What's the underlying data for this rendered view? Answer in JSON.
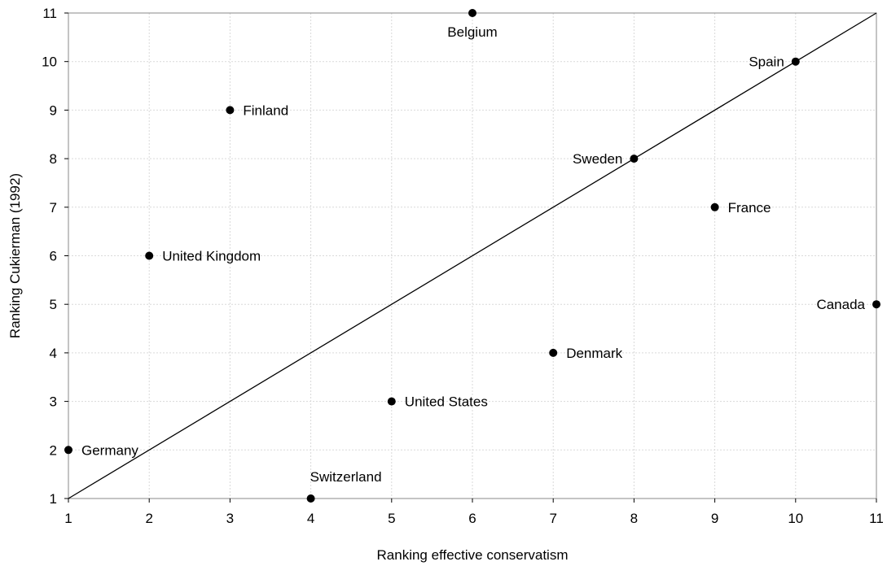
{
  "chart_data": {
    "type": "scatter",
    "xlabel": "Ranking effective conservatism",
    "ylabel": "Ranking Cukierman (1992)",
    "xlim": [
      1,
      11
    ],
    "ylim": [
      1,
      11
    ],
    "xticks": [
      1,
      2,
      3,
      4,
      5,
      6,
      7,
      8,
      9,
      10,
      11
    ],
    "yticks": [
      1,
      2,
      3,
      4,
      5,
      6,
      7,
      8,
      9,
      10,
      11
    ],
    "grid": "vertical and horizontal, light gray dotted",
    "legend": "none",
    "reference_line": {
      "from": [
        1,
        1
      ],
      "to": [
        11,
        11
      ]
    },
    "points": [
      {
        "label": "Germany",
        "x": 1,
        "y": 2,
        "label_side": "right"
      },
      {
        "label": "United Kingdom",
        "x": 2,
        "y": 6,
        "label_side": "right"
      },
      {
        "label": "Finland",
        "x": 3,
        "y": 9,
        "label_side": "right"
      },
      {
        "label": "Switzerland",
        "x": 4,
        "y": 1,
        "label_side": "above"
      },
      {
        "label": "United States",
        "x": 5,
        "y": 3,
        "label_side": "right"
      },
      {
        "label": "Belgium",
        "x": 6,
        "y": 11,
        "label_side": "below"
      },
      {
        "label": "Denmark",
        "x": 7,
        "y": 4,
        "label_side": "right"
      },
      {
        "label": "Sweden",
        "x": 8,
        "y": 8,
        "label_side": "left"
      },
      {
        "label": "France",
        "x": 9,
        "y": 7,
        "label_side": "right"
      },
      {
        "label": "Spain",
        "x": 10,
        "y": 10,
        "label_side": "left"
      },
      {
        "label": "Canada",
        "x": 11,
        "y": 5,
        "label_side": "left"
      }
    ],
    "colors": {
      "points": "#000000",
      "line": "#000000",
      "grid": "#d9d9d9"
    }
  }
}
